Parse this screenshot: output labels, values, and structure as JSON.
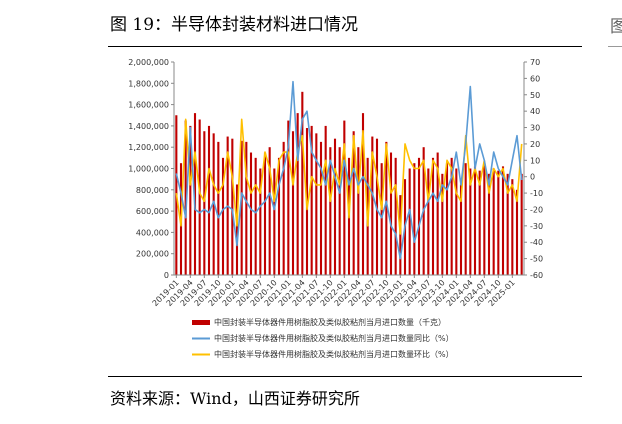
{
  "figure": {
    "title": "图 19：半导体封装材料进口情况",
    "source": "资料来源：Wind，山西证券研究所",
    "edge_glyph": "图"
  },
  "colors": {
    "bars": "#c00000",
    "yoy": "#5b9bd5",
    "mom": "#ffc000"
  },
  "chart_data": {
    "type": "bar",
    "title": "",
    "y_left": {
      "min": 0,
      "max": 2000000,
      "step": 200000,
      "tick_labels": [
        "0",
        "200,000",
        "400,000",
        "600,000",
        "800,000",
        "1,000,000",
        "1,200,000",
        "1,400,000",
        "1,600,000",
        "1,800,000",
        "2,000,000"
      ]
    },
    "y_right": {
      "min": -60,
      "max": 70,
      "step": 10,
      "tick_labels": [
        "-60",
        "-50",
        "-40",
        "-30",
        "-20",
        "-10",
        "0",
        "10",
        "20",
        "30",
        "40",
        "50",
        "60",
        "70"
      ]
    },
    "x_tick_labels": [
      "2019-01",
      "2019-04",
      "2019-07",
      "2019-10",
      "2020-01",
      "2020-04",
      "2020-07",
      "2020-10",
      "2021-01",
      "2021-04",
      "2021-07",
      "2021-10",
      "2022-01",
      "2022-04",
      "2022-07",
      "2022-10",
      "2023-01",
      "2023-04",
      "2023-07",
      "2023-10",
      "2024-01",
      "2024-04",
      "2024-07",
      "2024-10",
      "2025-01"
    ],
    "legend": [
      "中国封装半导体器件用树脂胶及类似胶粘剂当月进口数量（千克）",
      "中国封装半导体器件用树脂胶及类似胶粘剂当月进口数量同比（%）",
      "中国封装半导体器件用树脂胶及类似胶粘剂当月进口数量环比（%）"
    ],
    "months": [
      "2019-01",
      "2019-02",
      "2019-03",
      "2019-04",
      "2019-05",
      "2019-06",
      "2019-07",
      "2019-08",
      "2019-09",
      "2019-10",
      "2019-11",
      "2019-12",
      "2020-01",
      "2020-02",
      "2020-03",
      "2020-04",
      "2020-05",
      "2020-06",
      "2020-07",
      "2020-08",
      "2020-09",
      "2020-10",
      "2020-11",
      "2020-12",
      "2021-01",
      "2021-02",
      "2021-03",
      "2021-04",
      "2021-05",
      "2021-06",
      "2021-07",
      "2021-08",
      "2021-09",
      "2021-10",
      "2021-11",
      "2021-12",
      "2022-01",
      "2022-02",
      "2022-03",
      "2022-04",
      "2022-05",
      "2022-06",
      "2022-07",
      "2022-08",
      "2022-09",
      "2022-10",
      "2022-11",
      "2022-12",
      "2023-01",
      "2023-02",
      "2023-03",
      "2023-04",
      "2023-05",
      "2023-06",
      "2023-07",
      "2023-08",
      "2023-09",
      "2023-10",
      "2023-11",
      "2023-12",
      "2024-01",
      "2024-02",
      "2024-03",
      "2024-04",
      "2024-05",
      "2024-06",
      "2024-07",
      "2024-08",
      "2024-09",
      "2024-10",
      "2024-11",
      "2024-12",
      "2025-01",
      "2025-02",
      "2025-03"
    ],
    "series": [
      {
        "name": "进口数量（千克）",
        "axis": "left",
        "kind": "bar",
        "values": [
          1500000,
          1050000,
          1450000,
          1400000,
          1520000,
          1460000,
          1350000,
          1400000,
          1330000,
          1250000,
          1100000,
          1300000,
          1280000,
          850000,
          1260000,
          1250000,
          1150000,
          1100000,
          1000000,
          1150000,
          1200000,
          1000000,
          1100000,
          1250000,
          1450000,
          1350000,
          1520000,
          1720000,
          1380000,
          1400000,
          1330000,
          1250000,
          1400000,
          1200000,
          1280000,
          1200000,
          1450000,
          1100000,
          1350000,
          1200000,
          1520000,
          1100000,
          1300000,
          1280000,
          1050000,
          1250000,
          1150000,
          1100000,
          750000,
          900000,
          1000000,
          1050000,
          1100000,
          1200000,
          1000000,
          1100000,
          1150000,
          950000,
          1050000,
          1100000,
          1000000,
          850000,
          1050000,
          1000000,
          1020000,
          980000,
          1050000,
          950000,
          1000000,
          980000,
          1020000,
          950000,
          900000,
          800000,
          950000
        ]
      },
      {
        "name": "同比（%）",
        "axis": "right",
        "kind": "line",
        "values": [
          2,
          -10,
          -25,
          30,
          -20,
          -22,
          -20,
          -22,
          -15,
          -25,
          -20,
          -18,
          -20,
          -42,
          -10,
          -15,
          -20,
          -22,
          -18,
          -15,
          -10,
          -20,
          -5,
          5,
          18,
          58,
          10,
          35,
          40,
          15,
          10,
          5,
          -5,
          10,
          0,
          -10,
          10,
          -5,
          5,
          -5,
          0,
          -5,
          -10,
          -20,
          -25,
          -15,
          -30,
          -35,
          -50,
          -30,
          -20,
          -40,
          -30,
          -20,
          -15,
          -10,
          -15,
          -5,
          -8,
          0,
          15,
          -5,
          20,
          55,
          5,
          20,
          10,
          -5,
          15,
          5,
          0,
          -5,
          10,
          25,
          -2
        ]
      },
      {
        "name": "环比（%）",
        "axis": "right",
        "kind": "line",
        "values": [
          -10,
          -30,
          35,
          -5,
          15,
          -10,
          -15,
          5,
          -5,
          -10,
          -5,
          15,
          0,
          -30,
          35,
          0,
          -10,
          -5,
          -10,
          15,
          5,
          -15,
          10,
          15,
          15,
          -5,
          15,
          25,
          -20,
          0,
          -5,
          -5,
          10,
          -15,
          5,
          -5,
          20,
          -25,
          25,
          -10,
          28,
          -30,
          15,
          0,
          -20,
          20,
          -10,
          -5,
          -35,
          20,
          10,
          5,
          5,
          10,
          -15,
          10,
          5,
          -15,
          10,
          5,
          -10,
          -15,
          25,
          -5,
          5,
          -5,
          10,
          -10,
          5,
          0,
          5,
          -10,
          -5,
          -15,
          20
        ]
      }
    ]
  }
}
